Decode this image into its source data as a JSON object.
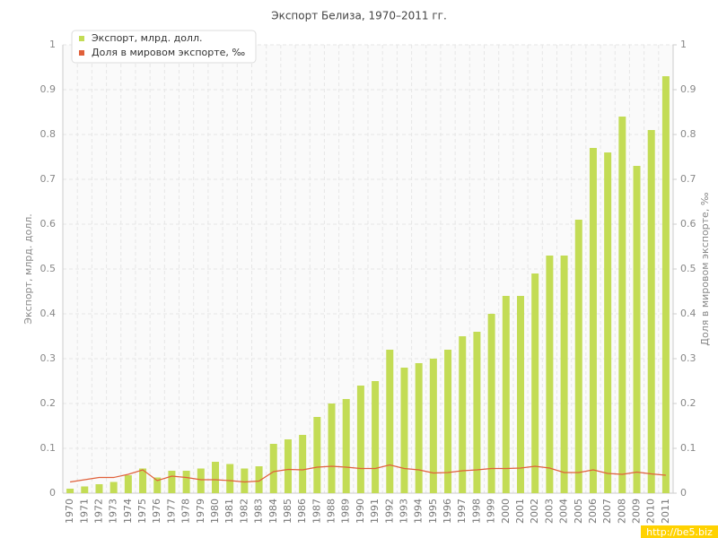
{
  "chart_data": {
    "type": "bar",
    "title": "Экспорт Белиза, 1970–2011 гг.",
    "y_label": "Экспорт, млрд. долл.",
    "y2_label": "Доля в мировом экспорте, ‰",
    "categories": [
      "1970",
      "1971",
      "1972",
      "1973",
      "1974",
      "1975",
      "1976",
      "1977",
      "1978",
      "1979",
      "1980",
      "1981",
      "1982",
      "1983",
      "1984",
      "1985",
      "1986",
      "1987",
      "1988",
      "1989",
      "1990",
      "1991",
      "1992",
      "1993",
      "1994",
      "1995",
      "1996",
      "1997",
      "1998",
      "1999",
      "2000",
      "2001",
      "2002",
      "2003",
      "2004",
      "2005",
      "2006",
      "2007",
      "2008",
      "2009",
      "2010",
      "2011"
    ],
    "series": [
      {
        "name": "Экспорт, млрд. долл.",
        "type": "bar",
        "color": "#c3dc55",
        "values": [
          0.01,
          0.015,
          0.02,
          0.025,
          0.04,
          0.055,
          0.035,
          0.05,
          0.05,
          0.055,
          0.07,
          0.065,
          0.055,
          0.06,
          0.11,
          0.12,
          0.13,
          0.17,
          0.2,
          0.21,
          0.24,
          0.25,
          0.32,
          0.28,
          0.29,
          0.3,
          0.32,
          0.35,
          0.36,
          0.4,
          0.44,
          0.44,
          0.49,
          0.53,
          0.53,
          0.61,
          0.77,
          0.76,
          0.84,
          0.73,
          0.81,
          0.93
        ]
      },
      {
        "name": "Доля в мировом экспорте, ‰",
        "type": "line",
        "axis": "y2",
        "color": "#e0603a",
        "values": [
          0.025,
          0.03,
          0.035,
          0.035,
          0.042,
          0.052,
          0.028,
          0.038,
          0.035,
          0.03,
          0.03,
          0.028,
          0.025,
          0.027,
          0.048,
          0.053,
          0.052,
          0.058,
          0.06,
          0.058,
          0.055,
          0.055,
          0.063,
          0.055,
          0.052,
          0.045,
          0.046,
          0.05,
          0.052,
          0.055,
          0.055,
          0.056,
          0.06,
          0.056,
          0.046,
          0.046,
          0.052,
          0.044,
          0.042,
          0.047,
          0.043,
          0.04
        ]
      }
    ],
    "ylim": [
      0,
      1
    ],
    "yticks": [
      0,
      0.1,
      0.2,
      0.3,
      0.4,
      0.5,
      0.6,
      0.7,
      0.8,
      0.9,
      1
    ],
    "y2lim": [
      0,
      1
    ],
    "y2ticks": [
      0,
      0.1,
      0.2,
      0.3,
      0.4,
      0.5,
      0.6,
      0.7,
      0.8,
      0.9,
      1
    ],
    "grid": true,
    "legend": "top-left",
    "watermark": "http://be5.biz"
  }
}
